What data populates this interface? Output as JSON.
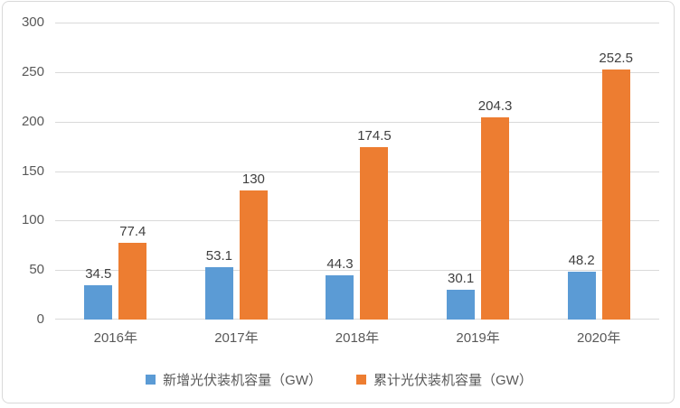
{
  "chart_data": {
    "type": "bar",
    "title": "",
    "xlabel": "",
    "ylabel": "",
    "categories": [
      "2016年",
      "2017年",
      "2018年",
      "2019年",
      "2020年"
    ],
    "series": [
      {
        "name": "新增光伏装机容量（GW）",
        "color": "#5B9BD5",
        "values": [
          34.5,
          53.1,
          44.3,
          30.1,
          48.2
        ]
      },
      {
        "name": "累计光伏装机容量（GW）",
        "color": "#ED7D31",
        "values": [
          77.4,
          130,
          174.5,
          204.3,
          252.5
        ]
      }
    ],
    "ylim": [
      0,
      300
    ],
    "yticks": [
      0,
      50,
      100,
      150,
      200,
      250,
      300
    ],
    "grid": true,
    "legend_position": "bottom"
  },
  "styles": {
    "background": "#FFFFFF",
    "border_color": "#D9D9D9",
    "gridline_color": "#D9D9D9",
    "axis_label_color": "#595959",
    "data_label_color": "#404040"
  }
}
